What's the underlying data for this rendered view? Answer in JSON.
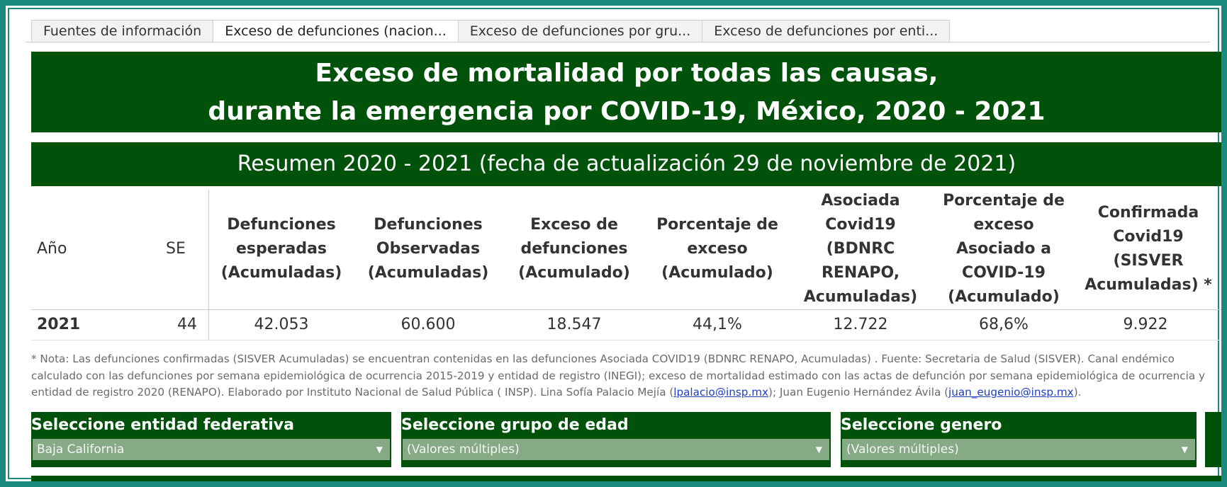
{
  "tabs": [
    {
      "label": "Fuentes de información"
    },
    {
      "label": "Exceso de defunciones (nacion..."
    },
    {
      "label": "Exceso de defunciones por gru..."
    },
    {
      "label": "Exceso de defunciones por enti..."
    }
  ],
  "header": {
    "title_line1": "Exceso de mortalidad por todas las causas,",
    "title_line2": "durante la emergencia por COVID-19, México, 2020 - 2021",
    "subtitle": "Resumen 2020 - 2021  (fecha de actualización 29 de noviembre de 2021)"
  },
  "summary_table": {
    "headers": {
      "year": "Año",
      "se": "SE",
      "expected": [
        "Defunciones",
        "esperadas",
        "(Acumuladas)"
      ],
      "observed": [
        "Defunciones",
        "Observadas",
        "(Acumuladas)"
      ],
      "excess": [
        "Exceso de",
        "defunciones",
        "(Acumulado)"
      ],
      "pct_excess": [
        "Porcentaje de",
        "exceso",
        "(Acumulado)"
      ],
      "associated": [
        "Asociada",
        "Covid19 (BDNRC",
        "RENAPO,",
        "Acumuladas)"
      ],
      "pct_associated": [
        "Porcentaje de",
        "exceso",
        "Asociado a",
        "COVID-19",
        "(Acumulado)"
      ],
      "confirmed": [
        "Confirmada",
        "Covid19",
        "(SISVER",
        "Acumuladas) *"
      ]
    },
    "row": {
      "year": "2021",
      "se": "44",
      "expected": "42.053",
      "observed": "60.600",
      "excess": "18.547",
      "pct_excess": "44,1%",
      "associated": "12.722",
      "pct_associated": "68,6%",
      "confirmed": "9.922"
    }
  },
  "note": {
    "text": "* Nota: Las defunciones confirmadas (SISVER Acumuladas) se encuentran contenidas en las defunciones Asociada COVID19 (BDNRC RENAPO, Acumuladas) . Fuente: Secretaria de Salud (SISVER). Canal endé­mico calculado con las defunciones por semana epidemiológica de ocurrencia 2015-2019 y entidad de registro (INEGI); exceso de mortalidad estimado con las actas de defunción por semana epidemiológica de ocurrencia y entidad de registro 2020 (RENAPO). Elaborado por Instituto Nacional de Salud Pública ( INSP). Lina Sofía Palacio Mejía (",
    "email1": "lpalacio@insp.mx",
    "between": "); Juan Eugenio Hernández Ávila (",
    "email2": "juan_eugenio@insp.mx",
    "end": ")."
  },
  "filters": {
    "entity": {
      "label": "Seleccione entidad federativa",
      "value": "Baja California"
    },
    "age": {
      "label": "Seleccione grupo de edad",
      "value": "(Valores múltiples)"
    },
    "gender": {
      "label": "Seleccione genero",
      "value": "(Valores múltiples)"
    }
  },
  "colors": {
    "banner": "#00520b",
    "frame": "#1a8a80",
    "select_bg": "#86aa86",
    "link": "#1f3fbf"
  }
}
